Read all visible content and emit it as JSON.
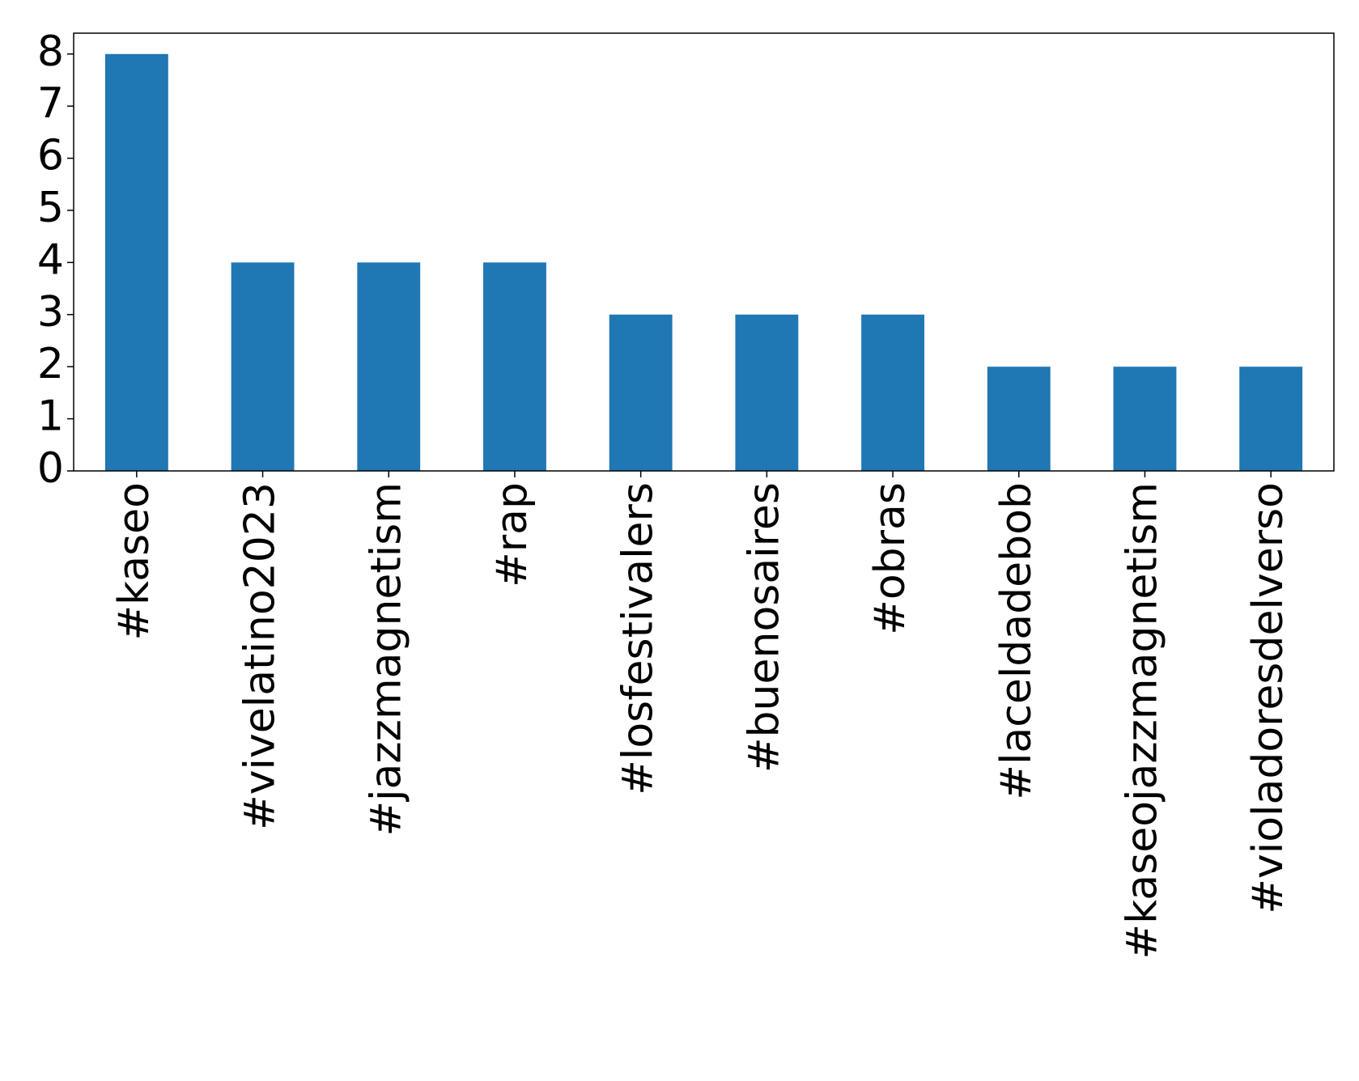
{
  "chart_data": {
    "type": "bar",
    "categories": [
      "#kaseo",
      "#vivelatino2023",
      "#jazzmagnetism",
      "#rap",
      "#losfestivalers",
      "#buenosaires",
      "#obras",
      "#laceldadebob",
      "#kaseojazzmagnetism",
      "#violadoresdelverso"
    ],
    "values": [
      8,
      4,
      4,
      4,
      3,
      3,
      3,
      2,
      2,
      2
    ],
    "color": "#1f77b4",
    "ylim": [
      0,
      8.4
    ],
    "yticks": [
      0,
      1,
      2,
      3,
      4,
      5,
      6,
      7,
      8
    ],
    "grid": false
  }
}
